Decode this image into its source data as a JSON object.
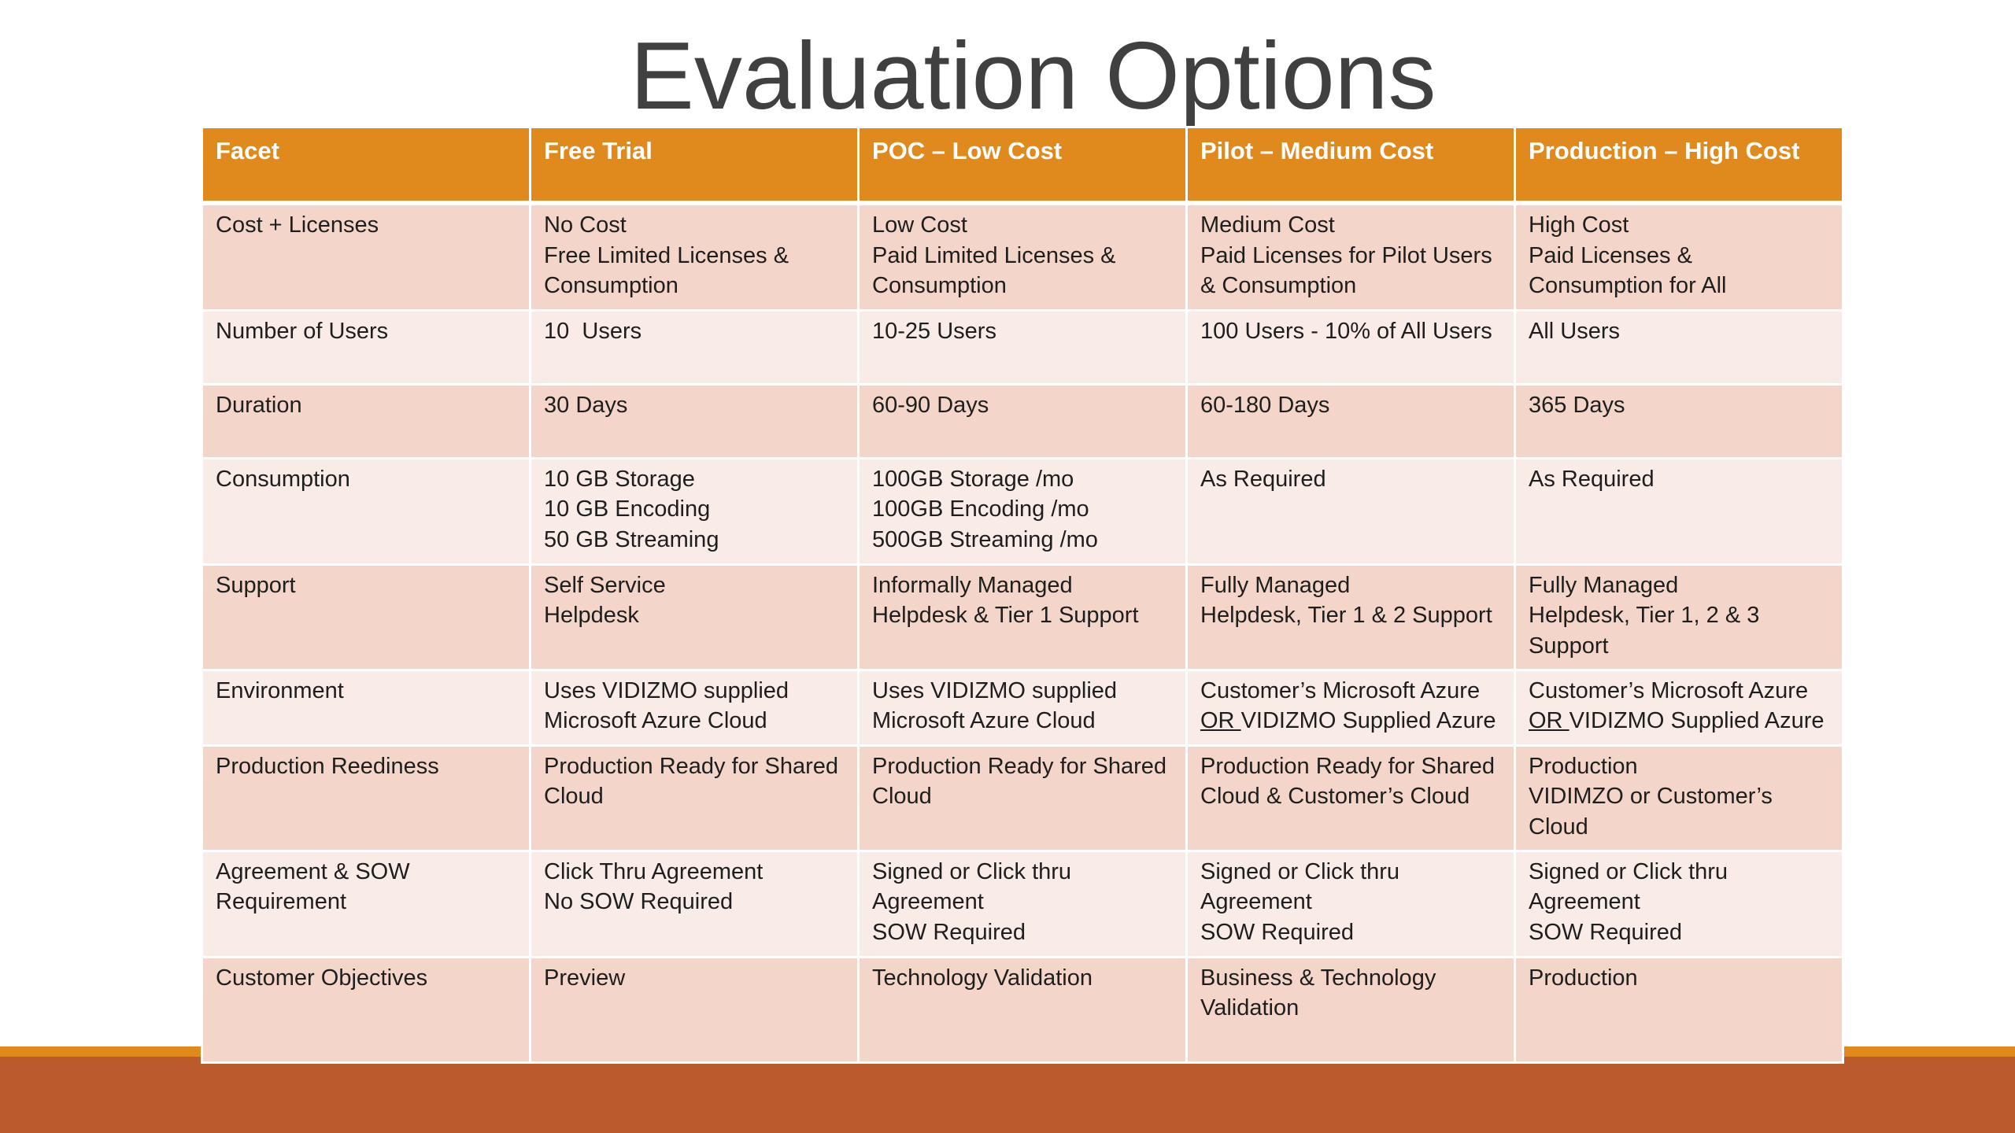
{
  "slide": {
    "title": "Evaluation Options"
  },
  "table": {
    "headers": [
      "Facet",
      "Free Trial",
      "POC – Low Cost",
      "Pilot – Medium Cost",
      "Production – High Cost"
    ],
    "rows": [
      {
        "facet": "Cost + Licenses",
        "cells": [
          [
            "No Cost",
            "Free Limited Licenses &",
            "Consumption"
          ],
          [
            "Low Cost",
            "Paid Limited Licenses &",
            "Consumption"
          ],
          [
            "Medium Cost",
            "Paid Licenses for Pilot Users",
            "& Consumption"
          ],
          [
            "High Cost",
            "Paid Licenses &",
            "Consumption for All"
          ]
        ]
      },
      {
        "facet": "Number of Users",
        "cells": [
          [
            "10  Users"
          ],
          [
            "10-25 Users"
          ],
          [
            "100 Users - 10% of All Users"
          ],
          [
            "All Users"
          ]
        ]
      },
      {
        "facet": "Duration",
        "cells": [
          [
            "30 Days"
          ],
          [
            "60-90 Days"
          ],
          [
            "60-180 Days"
          ],
          [
            "365 Days"
          ]
        ]
      },
      {
        "facet": "Consumption",
        "cells": [
          [
            "10 GB Storage",
            "10 GB Encoding",
            "50 GB Streaming"
          ],
          [
            "100GB Storage /mo",
            "100GB Encoding /mo",
            "500GB Streaming /mo"
          ],
          [
            "As Required"
          ],
          [
            "As Required"
          ]
        ]
      },
      {
        "facet": "Support",
        "cells": [
          [
            "Self Service",
            "Helpdesk"
          ],
          [
            "Informally Managed",
            "Helpdesk & Tier 1 Support"
          ],
          [
            "Fully Managed",
            "Helpdesk, Tier 1 & 2 Support"
          ],
          [
            "Fully Managed",
            "Helpdesk, Tier 1, 2 & 3",
            "Support"
          ]
        ]
      },
      {
        "facet": "Environment",
        "cells": [
          [
            "Uses VIDIZMO supplied",
            "Microsoft Azure Cloud"
          ],
          [
            "Uses VIDIZMO supplied",
            "Microsoft Azure Cloud"
          ],
          [
            "Customer’s Microsoft Azure",
            "OR VIDIZMO Supplied Azure"
          ],
          [
            "Customer’s Microsoft Azure",
            "OR VIDIZMO Supplied Azure"
          ]
        ]
      },
      {
        "facet": "Production Reediness",
        "cells": [
          [
            "Production Ready for Shared",
            "Cloud"
          ],
          [
            "Production Ready for Shared",
            "Cloud"
          ],
          [
            "Production Ready for Shared",
            "Cloud & Customer’s Cloud"
          ],
          [
            "Production",
            "VIDIMZO or Customer’s",
            "Cloud"
          ]
        ]
      },
      {
        "facet": "Agreement & SOW Requirement",
        "cells": [
          [
            "Click Thru Agreement",
            "No SOW Required"
          ],
          [
            "Signed or Click thru",
            "Agreement",
            "SOW Required"
          ],
          [
            "Signed or Click thru",
            "Agreement",
            "SOW Required"
          ],
          [
            "Signed or Click thru",
            "Agreement",
            "SOW Required"
          ]
        ]
      },
      {
        "facet": "Customer Objectives",
        "cells": [
          [
            "Preview"
          ],
          [
            "Technology Validation"
          ],
          [
            "Business & Technology",
            "Validation"
          ],
          [
            "Production"
          ]
        ]
      }
    ]
  },
  "colors": {
    "header_bg": "#e08a1e",
    "row_dark": "#f3d6c9",
    "row_light": "#f9ebe5",
    "footer_bar": "#bb5a2c",
    "footer_line": "#e08a1e"
  }
}
